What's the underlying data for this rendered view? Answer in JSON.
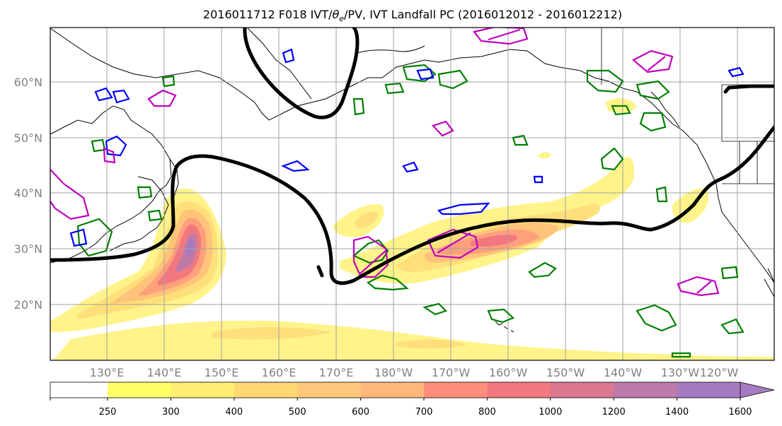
{
  "title": "2016011712 F018 IVT/θe/PV, IVT Landfall PC (2016012012 - 2016012212)",
  "title_parts": {
    "prefix": "2016011712 F018 IVT/",
    "theta": "θ",
    "theta_sub": "e",
    "suffix": "/PV, IVT Landfall PC (2016012012 - 2016012212)"
  },
  "latitude_labels": [
    "60°N",
    "50°N",
    "40°N",
    "30°N",
    "20°N"
  ],
  "longitude_labels": [
    "130°E",
    "140°E",
    "150°E",
    "160°E",
    "170°E",
    "180°W",
    "170°W",
    "160°W",
    "150°W",
    "140°W",
    "130°W",
    "120°W"
  ],
  "colorbar": {
    "ticks": [
      "250",
      "300",
      "400",
      "500",
      "600",
      "700",
      "800",
      "1000",
      "1200",
      "1400",
      "1600"
    ],
    "colors": [
      "#ffff66",
      "#ffee70",
      "#ffd873",
      "#ffc87a",
      "#ffb87c",
      "#ff8f7c",
      "#f27880",
      "#d97890",
      "#bd7aaa",
      "#a67ac0"
    ],
    "extend": "max"
  },
  "contours": {
    "ivt_fill_colors": [
      "#fff38a",
      "#ffdf7a",
      "#ffc47a",
      "#ff9f7c",
      "#f27880",
      "#c07aa6",
      "#a67ac0"
    ],
    "theta_e_color": "#007f00",
    "pv_color": "#0000ff",
    "pc_color": "#bf00bf",
    "landfall_line_color": "#000000"
  }
}
